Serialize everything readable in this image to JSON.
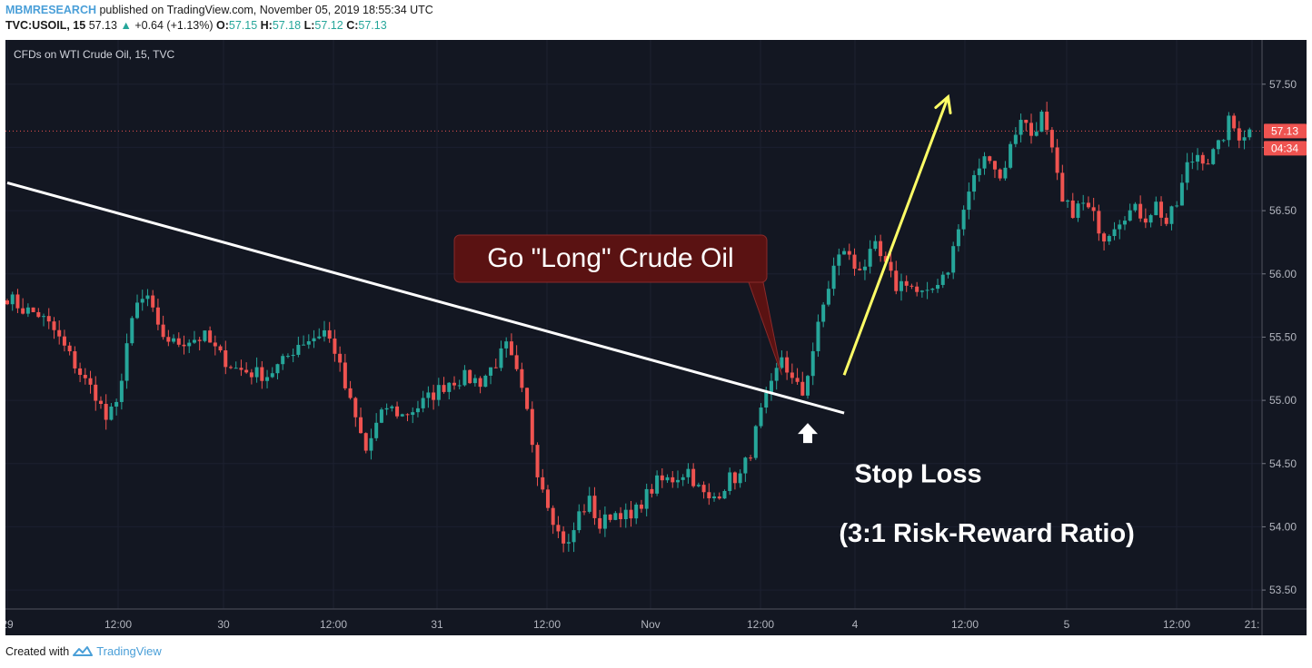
{
  "header": {
    "publisher": "MBMRESEARCH",
    "published_text": "published on TradingView.com, November 05, 2019 18:55:34 UTC",
    "symbol": "TVC:USOIL, 15",
    "last": "57.13",
    "change_arrow": "▲",
    "change": "+0.64 (+1.13%)",
    "o_label": "O:",
    "o": "57.15",
    "h_label": "H:",
    "h": "57.18",
    "l_label": "L:",
    "l": "57.12",
    "c_label": "C:",
    "c": "57.13"
  },
  "footer": {
    "created_with": "Created with",
    "brand": "TradingView",
    "logo_icon": "tradingview-cloud-icon"
  },
  "colors": {
    "background": "#131722",
    "up": "#26a69a",
    "down": "#ef5350",
    "trendline": "#ffffff",
    "target_arrow": "#ffff66",
    "callout": "#5a1212",
    "price_label": "#ef5350"
  },
  "chart_data": {
    "type": "candlestick",
    "title": "CFDs on WTI Crude Oil, 15, TVC",
    "ylim": [
      53.35,
      57.85
    ],
    "y_ticks": [
      "57.50",
      "57.00",
      "56.50",
      "56.00",
      "55.50",
      "55.00",
      "54.50",
      "54.00",
      "53.50"
    ],
    "x_ticks": [
      "29",
      "12:00",
      "30",
      "12:00",
      "31",
      "12:00",
      "Nov",
      "12:00",
      "4",
      "12:00",
      "5",
      "12:00",
      "21:"
    ],
    "last_price_label": "57.13",
    "countdown_label": "04:34",
    "series": [
      {
        "close_path": [
          [
            0,
            55.82
          ],
          [
            3,
            55.72
          ],
          [
            6,
            55.68
          ],
          [
            9,
            55.55
          ],
          [
            12,
            55.35
          ],
          [
            15,
            55.15
          ],
          [
            17,
            55.05
          ],
          [
            19,
            54.85
          ],
          [
            21,
            54.95
          ],
          [
            23,
            55.45
          ],
          [
            25,
            55.75
          ],
          [
            27,
            55.82
          ],
          [
            29,
            55.55
          ],
          [
            32,
            55.45
          ],
          [
            35,
            55.48
          ],
          [
            38,
            55.5
          ],
          [
            41,
            55.35
          ],
          [
            44,
            55.25
          ],
          [
            47,
            55.22
          ],
          [
            50,
            55.2
          ],
          [
            53,
            55.3
          ],
          [
            56,
            55.45
          ],
          [
            59,
            55.5
          ],
          [
            61,
            55.55
          ],
          [
            63,
            55.4
          ],
          [
            65,
            55.1
          ],
          [
            67,
            54.85
          ],
          [
            69,
            54.6
          ],
          [
            71,
            54.8
          ],
          [
            73,
            54.95
          ],
          [
            76,
            54.88
          ],
          [
            79,
            54.95
          ],
          [
            82,
            55.05
          ],
          [
            85,
            55.15
          ],
          [
            88,
            55.18
          ],
          [
            91,
            55.15
          ],
          [
            94,
            55.3
          ],
          [
            96,
            55.42
          ],
          [
            98,
            55.2
          ],
          [
            100,
            54.9
          ],
          [
            102,
            54.45
          ],
          [
            104,
            54.2
          ],
          [
            106,
            53.95
          ],
          [
            108,
            53.85
          ],
          [
            110,
            54.1
          ],
          [
            112,
            54.2
          ],
          [
            114,
            54.0
          ],
          [
            116,
            54.1
          ],
          [
            118,
            54.12
          ],
          [
            120,
            54.05
          ],
          [
            122,
            54.2
          ],
          [
            125,
            54.35
          ],
          [
            128,
            54.38
          ],
          [
            131,
            54.45
          ],
          [
            133,
            54.3
          ],
          [
            135,
            54.2
          ],
          [
            137,
            54.28
          ],
          [
            139,
            54.38
          ],
          [
            141,
            54.4
          ],
          [
            143,
            54.6
          ],
          [
            145,
            54.9
          ],
          [
            147,
            55.1
          ],
          [
            149,
            55.35
          ],
          [
            151,
            55.15
          ],
          [
            153,
            55.05
          ],
          [
            155,
            55.4
          ],
          [
            157,
            55.75
          ],
          [
            159,
            56.05
          ],
          [
            161,
            56.2
          ],
          [
            163,
            56.05
          ],
          [
            165,
            56.08
          ],
          [
            167,
            56.2
          ],
          [
            169,
            56.05
          ],
          [
            171,
            55.9
          ],
          [
            173,
            55.95
          ],
          [
            175,
            55.85
          ],
          [
            177,
            55.82
          ],
          [
            179,
            55.95
          ],
          [
            181,
            56.05
          ],
          [
            183,
            56.35
          ],
          [
            185,
            56.65
          ],
          [
            187,
            56.85
          ],
          [
            189,
            56.95
          ],
          [
            191,
            56.75
          ],
          [
            193,
            57.0
          ],
          [
            195,
            57.25
          ],
          [
            197,
            57.1
          ],
          [
            199,
            57.25
          ],
          [
            201,
            56.95
          ],
          [
            203,
            56.55
          ],
          [
            205,
            56.5
          ],
          [
            207,
            56.55
          ],
          [
            209,
            56.45
          ],
          [
            211,
            56.3
          ],
          [
            213,
            56.4
          ],
          [
            215,
            56.48
          ],
          [
            217,
            56.5
          ],
          [
            219,
            56.45
          ],
          [
            221,
            56.55
          ],
          [
            223,
            56.4
          ],
          [
            225,
            56.55
          ],
          [
            227,
            56.85
          ],
          [
            229,
            56.95
          ],
          [
            231,
            56.9
          ],
          [
            233,
            57.0
          ],
          [
            235,
            57.2
          ],
          [
            237,
            57.1
          ],
          [
            239,
            57.13
          ]
        ]
      }
    ],
    "annotations": [
      {
        "type": "trendline",
        "from": [
          0,
          56.72
        ],
        "to": [
          161,
          54.9
        ]
      },
      {
        "type": "callout",
        "text": "Go \"Long\" Crude Oil",
        "anchor": [
          149,
          55.2
        ]
      },
      {
        "type": "arrow",
        "label": "entry",
        "at": [
          154,
          54.72
        ]
      },
      {
        "type": "arrow",
        "label": "target",
        "from": [
          161,
          55.2
        ],
        "to": [
          181,
          57.4
        ]
      },
      {
        "type": "text",
        "text": "Stop Loss",
        "at": [
          163,
          54.35
        ]
      },
      {
        "type": "text",
        "text": "(3:1 Risk-Reward Ratio)",
        "at": [
          160,
          53.88
        ]
      }
    ]
  }
}
